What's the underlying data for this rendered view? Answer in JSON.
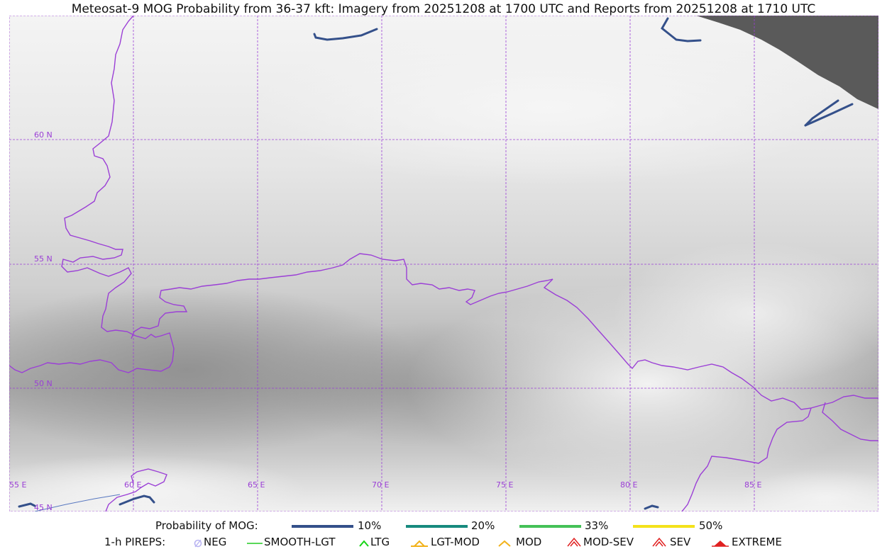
{
  "title": "Meteosat-9 MOG Probability from 36-37 kft: Imagery from 20251208 at 1700 UTC and Reports from 20251208 at 1710 UTC",
  "map": {
    "lat_labels": [
      "60 N",
      "55 N",
      "50 N",
      "45 N"
    ],
    "lon_labels": [
      "55 E",
      "60 E",
      "65 E",
      "70 E",
      "75 E",
      "80 E",
      "85 E"
    ],
    "colors": {
      "grid": "#9b3fd6",
      "border": "#9b3fd6",
      "contour": "#34508a",
      "nodata": "#5a5a5a"
    }
  },
  "legend": {
    "probability_label": "Probability of MOG:",
    "probability": [
      {
        "label": "10%",
        "color": "#34508a"
      },
      {
        "label": "20%",
        "color": "#178a7e"
      },
      {
        "label": "33%",
        "color": "#44c157"
      },
      {
        "label": "50%",
        "color": "#f4e21a"
      }
    ],
    "pireps_label": "1-h PIREPS:",
    "pireps": [
      {
        "label": "NEG",
        "color": "#b9b4f2",
        "icon": "neg-circle-icon"
      },
      {
        "label": "SMOOTH-LGT",
        "color": "#22cc22",
        "icon": "dash-icon"
      },
      {
        "label": "LTG",
        "color": "#16d416",
        "icon": "caret-icon"
      },
      {
        "label": "LGT-MOD",
        "color": "#f2b21a",
        "icon": "caret-bar-icon"
      },
      {
        "label": "MOD",
        "color": "#f2b21a",
        "icon": "caret-icon"
      },
      {
        "label": "MOD-SEV",
        "color": "#e02020",
        "icon": "double-caret-icon"
      },
      {
        "label": "SEV",
        "color": "#e02020",
        "icon": "double-caret-icon"
      },
      {
        "label": "EXTREME",
        "color": "#e02020",
        "icon": "filled-caret-icon"
      }
    ]
  }
}
